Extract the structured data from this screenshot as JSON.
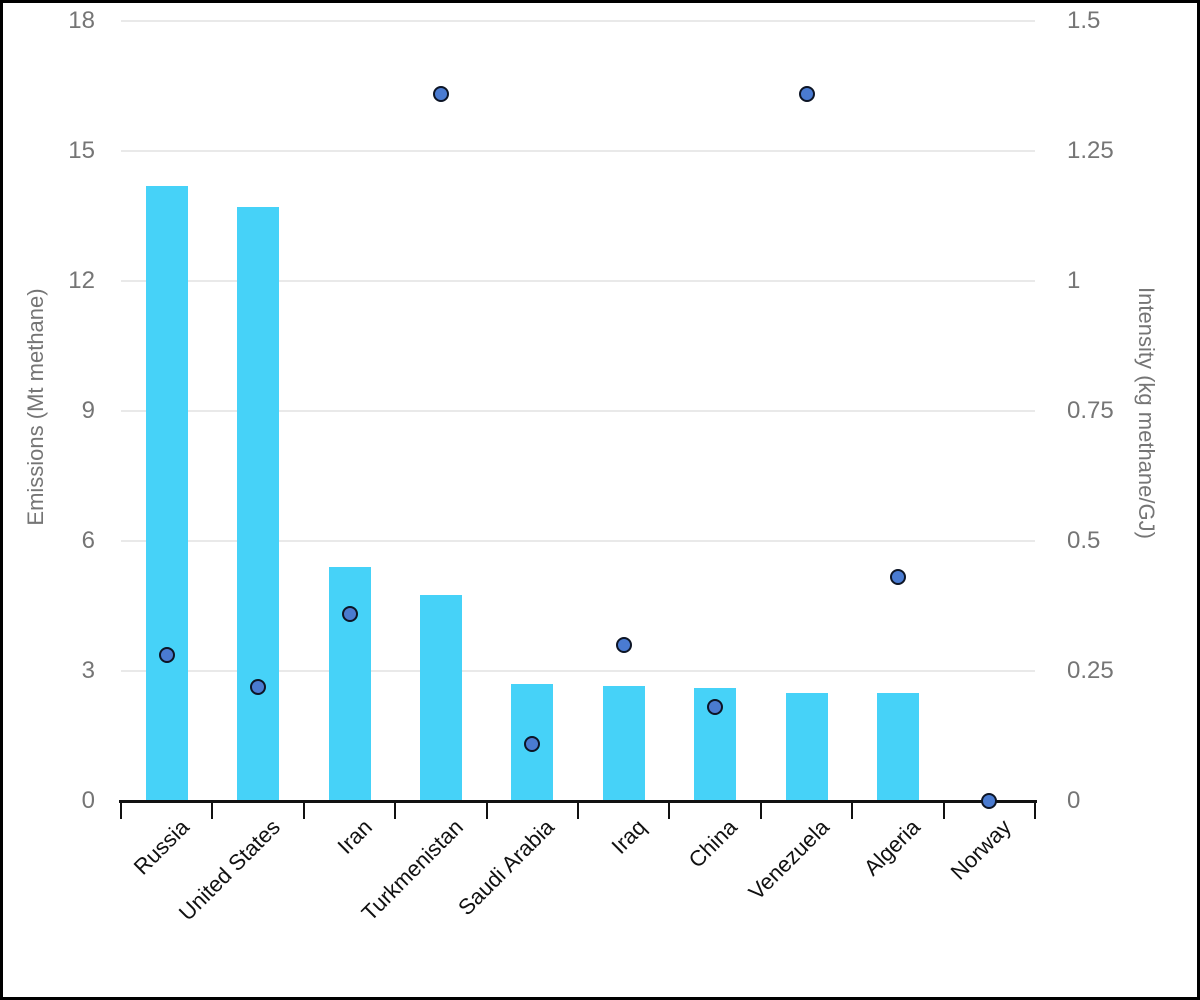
{
  "chart_data": {
    "type": "bar",
    "subtype": "bar+scatter combo, dual axis",
    "title": "",
    "categories": [
      "Russia",
      "United States",
      "Iran",
      "Turkmenistan",
      "Saudi Arabia",
      "Iraq",
      "China",
      "Venezuela",
      "Algeria",
      "Norway"
    ],
    "series": [
      {
        "name": "Emissions",
        "type": "bar",
        "axis": "left",
        "values": [
          14.2,
          13.7,
          5.4,
          4.75,
          2.7,
          2.65,
          2.6,
          2.5,
          2.5,
          0
        ]
      },
      {
        "name": "Intensity",
        "type": "scatter",
        "axis": "right",
        "values": [
          0.28,
          0.22,
          0.36,
          1.36,
          0.11,
          0.3,
          0.18,
          1.36,
          0.43,
          0
        ]
      }
    ],
    "left_axis": {
      "label": "Emissions (Mt methane)",
      "ticks": [
        0,
        3,
        6,
        9,
        12,
        15,
        18
      ],
      "tick_labels": [
        "0",
        "3",
        "6",
        "9",
        "12",
        "15",
        "18"
      ],
      "lim": [
        0,
        18
      ]
    },
    "right_axis": {
      "label": "Intensity (kg methane/GJ)",
      "ticks": [
        0,
        0.25,
        0.5,
        0.75,
        1,
        1.25,
        1.5
      ],
      "tick_labels": [
        "0",
        "0.25",
        "0.5",
        "0.75",
        "1",
        "1.25",
        "1.5"
      ],
      "lim": [
        0,
        1.5
      ]
    },
    "grid": true,
    "legend": "none",
    "style": {
      "bar_color": "#46d2f8",
      "marker_fill": "#4a7bd1",
      "marker_edge": "#0d1526",
      "grid_color": "#e9e9e9",
      "tick_label_color": "#757575",
      "axis_title_color": "#757575",
      "category_label_color": "#111111",
      "axis_color": "#111111"
    }
  }
}
